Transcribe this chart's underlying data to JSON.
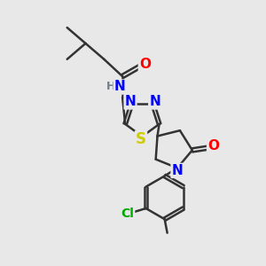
{
  "bg_color": "#e8e8e8",
  "atom_colors": {
    "O": "#ff0000",
    "N": "#0000ff",
    "S": "#cccc00",
    "Cl": "#00aa00",
    "H": "#708090",
    "C": "#333333"
  },
  "bond_color": "#333333",
  "bond_width": 1.8,
  "font_size": 10,
  "figsize": [
    3.0,
    3.0
  ],
  "dpi": 100
}
